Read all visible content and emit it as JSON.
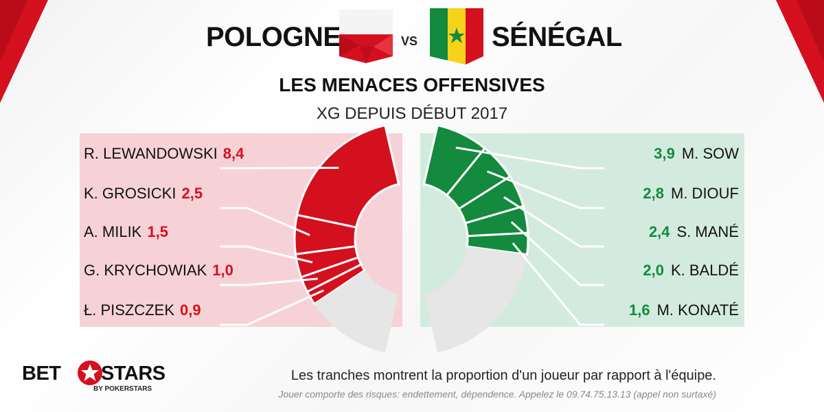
{
  "header": {
    "team_left": "POLOGNE",
    "vs": "VS",
    "team_right": "SÉNÉGAL",
    "title": "LES MENACES OFFENSIVES",
    "subtitle": "XG DEPUIS DÉBUT 2017"
  },
  "colors": {
    "poland": "#d4101f",
    "senegal": "#138a3e",
    "rest": "#e6e6e6",
    "poland_panel": "#f6d2d6",
    "senegal_panel": "#d3ebdf"
  },
  "chart_data": [
    {
      "type": "pie",
      "team": "POLOGNE",
      "categories": [
        "R. LEWANDOWSKI",
        "K. GROSICKI",
        "A. MILIK",
        "G. KRYCHOWIAK",
        "Ł. PISZCZEK"
      ],
      "values": [
        8.4,
        2.5,
        1.5,
        1.0,
        0.9
      ],
      "display_values": [
        "8,4",
        "2,5",
        "1,5",
        "1,0",
        "0,9"
      ],
      "team_share_of_half_donut": 0.72
    },
    {
      "type": "pie",
      "team": "SÉNÉGAL",
      "categories": [
        "M. SOW",
        "M. DIOUF",
        "S. MANÉ",
        "K. BALDÉ",
        "M. KONATÉ"
      ],
      "values": [
        3.9,
        2.8,
        2.4,
        2.0,
        1.6
      ],
      "display_values": [
        "3,9",
        "2,8",
        "2,4",
        "2,0",
        "1,6"
      ],
      "team_share_of_half_donut": 0.55
    }
  ],
  "footer": {
    "note": "Les tranches montrent la proportion d'un joueur par rapport à l'équipe.",
    "disclaimer": "Jouer comporte des risques: endettement, dépendence. Appelez le 09.74.75.13.13 (appel non surtaxé)"
  },
  "logo": {
    "left": "BET",
    "right": "STARS",
    "sub": "BY POKERSTARS",
    "icon": "star-icon"
  }
}
